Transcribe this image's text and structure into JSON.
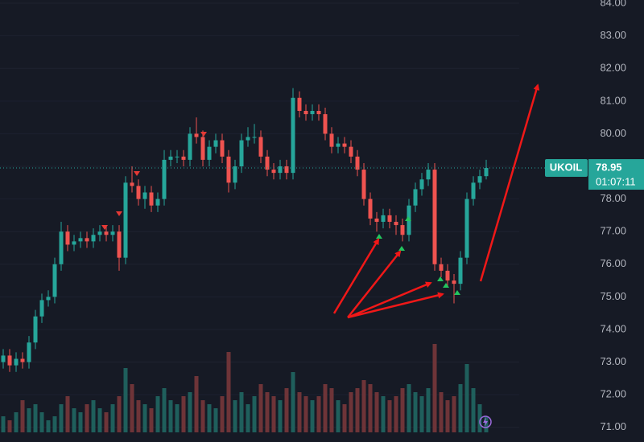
{
  "chart_data": {
    "type": "candlestick",
    "symbol": "UKOIL",
    "last_price": 78.95,
    "countdown": "01:07:11",
    "up_color": "#26a69a",
    "down_color": "#ef5350",
    "volume_up_color": "#1f5f5c",
    "volume_down_color": "#6e3438",
    "open": [
      73.0,
      73.2,
      72.9,
      73.1,
      73.0,
      73.6,
      74.4,
      74.9,
      75.0,
      76.0,
      77.0,
      76.6,
      76.7,
      76.8,
      76.7,
      76.9,
      77.0,
      76.9,
      77.0,
      76.2,
      78.5,
      78.4,
      78.0,
      78.2,
      77.8,
      78.0,
      79.2,
      79.3,
      79.3,
      79.2,
      80.0,
      79.9,
      79.2,
      79.6,
      79.8,
      79.3,
      78.5,
      79.0,
      79.8,
      79.9,
      79.9,
      79.3,
      78.9,
      78.8,
      79.0,
      78.8,
      81.1,
      80.7,
      80.6,
      80.7,
      80.6,
      80.0,
      79.6,
      79.7,
      79.6,
      79.3,
      78.9,
      78.0,
      77.4,
      77.3,
      77.5,
      77.3,
      77.2,
      76.9,
      77.8,
      78.3,
      78.6,
      78.9,
      76.0,
      75.8,
      75.5,
      75.4,
      76.2,
      78.0,
      78.5,
      78.7
    ],
    "high": [
      73.4,
      73.4,
      73.3,
      73.3,
      73.8,
      74.6,
      75.1,
      75.2,
      76.2,
      77.3,
      77.2,
      76.9,
      77.0,
      77.0,
      77.1,
      77.2,
      77.2,
      77.2,
      77.2,
      78.7,
      79.0,
      78.6,
      78.4,
      78.4,
      78.2,
      79.5,
      79.5,
      79.5,
      79.5,
      80.2,
      80.5,
      80.1,
      79.8,
      80.0,
      80.0,
      79.5,
      79.2,
      80.0,
      80.2,
      80.3,
      80.1,
      79.5,
      79.1,
      79.2,
      79.2,
      81.4,
      81.3,
      80.9,
      80.9,
      80.9,
      80.8,
      80.2,
      79.9,
      79.9,
      79.8,
      79.5,
      79.1,
      78.2,
      77.6,
      77.7,
      77.7,
      77.5,
      77.4,
      78.0,
      78.5,
      78.8,
      79.1,
      79.1,
      76.2,
      76.0,
      75.7,
      76.4,
      78.2,
      78.7,
      78.9,
      79.2
    ],
    "low": [
      72.8,
      72.7,
      72.7,
      72.8,
      72.8,
      73.4,
      74.2,
      74.7,
      74.8,
      75.8,
      76.4,
      76.4,
      76.5,
      76.5,
      76.5,
      76.7,
      76.7,
      76.7,
      75.8,
      76.0,
      78.2,
      77.8,
      77.7,
      77.6,
      77.6,
      77.8,
      79.0,
      79.1,
      79.0,
      79.0,
      79.7,
      79.0,
      79.0,
      79.4,
      79.1,
      78.2,
      78.3,
      78.8,
      79.6,
      79.7,
      79.1,
      78.7,
      78.6,
      78.6,
      78.6,
      78.6,
      80.5,
      80.4,
      80.4,
      80.4,
      79.8,
      79.4,
      79.4,
      79.4,
      79.1,
      78.7,
      77.8,
      77.2,
      77.0,
      77.1,
      77.1,
      76.9,
      76.7,
      76.7,
      77.6,
      78.1,
      78.4,
      75.8,
      75.6,
      75.3,
      74.8,
      75.2,
      76.0,
      77.8,
      78.3,
      78.6
    ],
    "close": [
      73.2,
      72.9,
      73.1,
      73.0,
      73.6,
      74.4,
      74.9,
      75.0,
      76.0,
      77.0,
      76.6,
      76.7,
      76.8,
      76.7,
      76.9,
      77.0,
      76.9,
      77.0,
      76.2,
      78.5,
      78.4,
      78.0,
      78.2,
      77.8,
      78.0,
      79.2,
      79.3,
      79.3,
      79.2,
      80.0,
      79.9,
      79.2,
      79.6,
      79.8,
      79.3,
      78.5,
      79.0,
      79.8,
      79.9,
      79.9,
      79.3,
      78.9,
      78.8,
      79.0,
      78.8,
      81.1,
      80.7,
      80.6,
      80.7,
      80.6,
      80.0,
      79.6,
      79.7,
      79.6,
      79.3,
      78.9,
      78.0,
      77.4,
      77.3,
      77.5,
      77.3,
      77.2,
      76.9,
      77.8,
      78.3,
      78.6,
      78.9,
      76.0,
      75.8,
      75.5,
      75.4,
      76.2,
      78.0,
      78.5,
      78.7,
      78.95
    ],
    "volume": [
      20,
      15,
      25,
      40,
      30,
      35,
      25,
      15,
      20,
      35,
      45,
      30,
      25,
      35,
      40,
      30,
      25,
      35,
      45,
      80,
      60,
      40,
      35,
      30,
      45,
      55,
      40,
      35,
      45,
      50,
      70,
      40,
      35,
      30,
      45,
      100,
      40,
      50,
      35,
      45,
      60,
      50,
      45,
      40,
      55,
      75,
      50,
      45,
      40,
      45,
      60,
      55,
      40,
      35,
      50,
      55,
      65,
      60,
      50,
      45,
      40,
      45,
      55,
      60,
      50,
      45,
      55,
      110,
      50,
      40,
      45,
      60,
      85,
      55,
      35,
      20
    ],
    "ylim": [
      70.55,
      84.1
    ],
    "yticks": [
      {
        "value": 71,
        "label": "71.00"
      },
      {
        "value": 72,
        "label": "72.00"
      },
      {
        "value": 73,
        "label": "73.00"
      },
      {
        "value": 74,
        "label": "74.00"
      },
      {
        "value": 75,
        "label": "75.00"
      },
      {
        "value": 76,
        "label": "76.00"
      },
      {
        "value": 77,
        "label": "77.00"
      },
      {
        "value": 78,
        "label": "78.00"
      },
      {
        "value": 79,
        "label": "79.00"
      },
      {
        "value": 80,
        "label": "80.00"
      },
      {
        "value": 81,
        "label": "81.00"
      },
      {
        "value": 82,
        "label": "82.00"
      },
      {
        "value": 83,
        "label": "83.00"
      },
      {
        "value": 84,
        "label": "84.00"
      }
    ]
  }
}
